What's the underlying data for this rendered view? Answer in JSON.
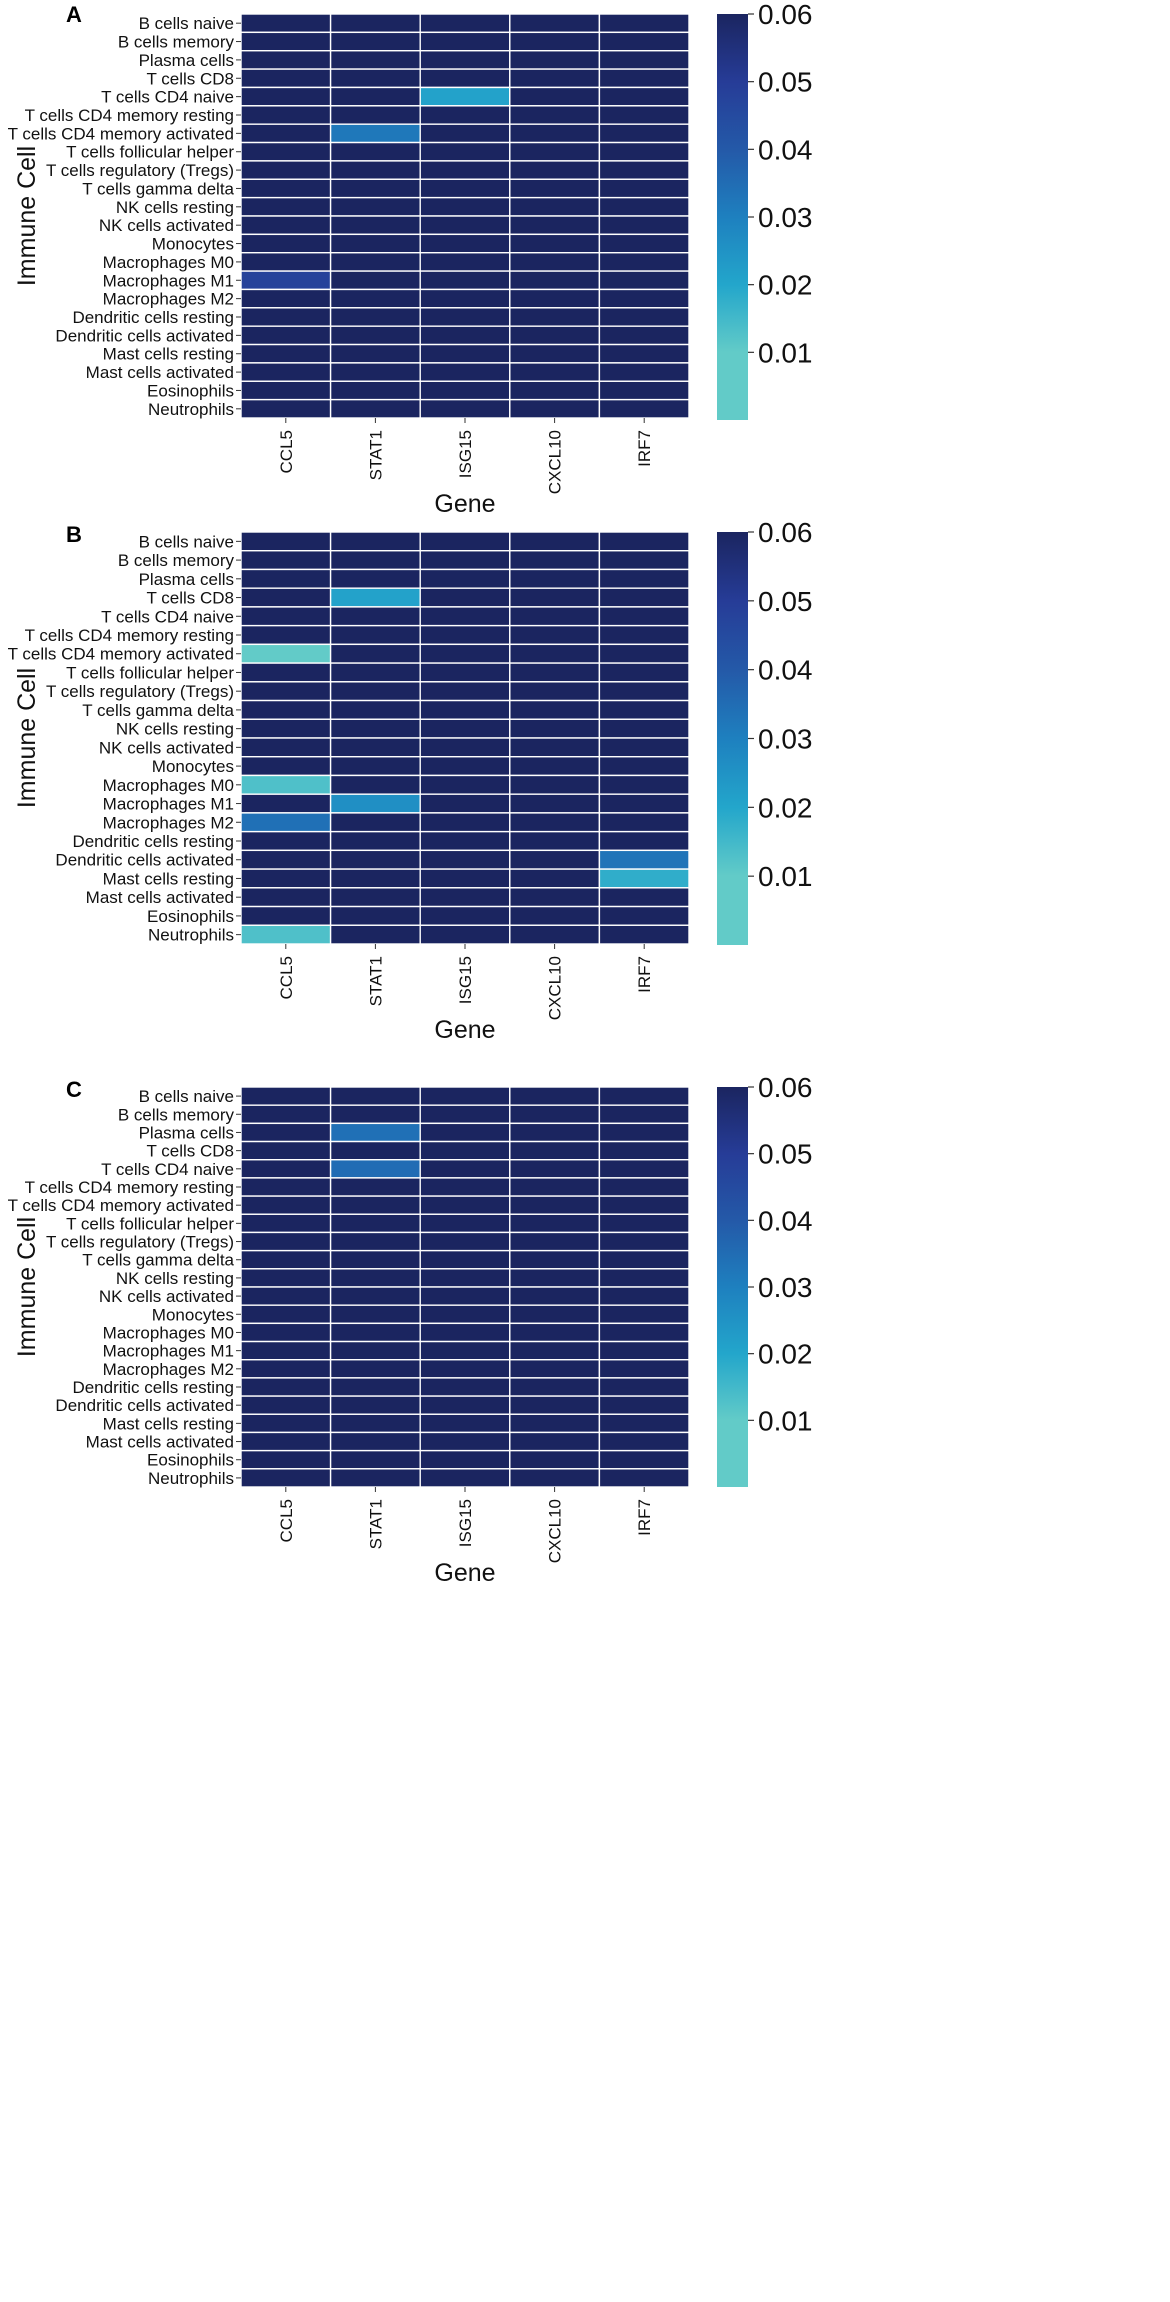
{
  "chart_data": [
    {
      "type": "heatmap",
      "panel_label": "A",
      "xlabel": "Gene",
      "ylabel": "Immune Cell",
      "columns": [
        "CCL5",
        "STAT1",
        "ISG15",
        "CXCL10",
        "IRF7"
      ],
      "rows": [
        "B cells naive",
        "B cells memory",
        "Plasma cells",
        "T cells CD8",
        "T cells CD4 naive",
        "T cells CD4 memory resting",
        "T cells CD4 memory activated",
        "T cells follicular helper",
        "T cells regulatory (Tregs)",
        "T cells gamma delta",
        "NK cells resting",
        "NK cells activated",
        "Monocytes",
        "Macrophages M0",
        "Macrophages M1",
        "Macrophages M2",
        "Dendritic cells resting",
        "Dendritic cells activated",
        "Mast cells resting",
        "Mast cells activated",
        "Eosinophils",
        "Neutrophils"
      ],
      "values": [
        [
          0.06,
          0.06,
          0.06,
          0.06,
          0.06
        ],
        [
          0.06,
          0.06,
          0.06,
          0.06,
          0.06
        ],
        [
          0.06,
          0.06,
          0.06,
          0.06,
          0.06
        ],
        [
          0.06,
          0.06,
          0.06,
          0.06,
          0.06
        ],
        [
          0.06,
          0.06,
          0.021,
          0.06,
          0.06
        ],
        [
          0.06,
          0.06,
          0.06,
          0.06,
          0.06
        ],
        [
          0.06,
          0.032,
          0.06,
          0.06,
          0.06
        ],
        [
          0.06,
          0.06,
          0.06,
          0.06,
          0.06
        ],
        [
          0.06,
          0.06,
          0.06,
          0.06,
          0.06
        ],
        [
          0.06,
          0.06,
          0.06,
          0.06,
          0.06
        ],
        [
          0.06,
          0.06,
          0.06,
          0.06,
          0.06
        ],
        [
          0.06,
          0.06,
          0.06,
          0.06,
          0.06
        ],
        [
          0.06,
          0.06,
          0.06,
          0.06,
          0.06
        ],
        [
          0.06,
          0.06,
          0.06,
          0.06,
          0.06
        ],
        [
          0.048,
          0.06,
          0.06,
          0.06,
          0.06
        ],
        [
          0.06,
          0.06,
          0.06,
          0.06,
          0.06
        ],
        [
          0.06,
          0.06,
          0.06,
          0.06,
          0.06
        ],
        [
          0.06,
          0.06,
          0.06,
          0.06,
          0.06
        ],
        [
          0.06,
          0.06,
          0.06,
          0.06,
          0.06
        ],
        [
          0.06,
          0.06,
          0.06,
          0.06,
          0.06
        ],
        [
          0.06,
          0.06,
          0.06,
          0.06,
          0.06
        ],
        [
          0.06,
          0.06,
          0.06,
          0.06,
          0.06
        ]
      ],
      "color_range": [
        0,
        0.06
      ],
      "colorbar_ticks": [
        "0.01",
        "0.02",
        "0.03",
        "0.04",
        "0.05",
        "0.06"
      ],
      "colormap": "YlGnBu",
      "grid": true
    },
    {
      "type": "heatmap",
      "panel_label": "B",
      "xlabel": "Gene",
      "ylabel": "Immune Cell",
      "columns": [
        "CCL5",
        "STAT1",
        "ISG15",
        "CXCL10",
        "IRF7"
      ],
      "rows": [
        "B cells naive",
        "B cells memory",
        "Plasma cells",
        "T cells CD8",
        "T cells CD4 naive",
        "T cells CD4 memory resting",
        "T cells CD4 memory activated",
        "T cells follicular helper",
        "T cells regulatory (Tregs)",
        "T cells gamma delta",
        "NK cells resting",
        "NK cells activated",
        "Monocytes",
        "Macrophages M0",
        "Macrophages M1",
        "Macrophages M2",
        "Dendritic cells resting",
        "Dendritic cells activated",
        "Mast cells resting",
        "Mast cells activated",
        "Eosinophils",
        "Neutrophils"
      ],
      "values": [
        [
          0.06,
          0.06,
          0.06,
          0.06,
          0.06
        ],
        [
          0.06,
          0.06,
          0.06,
          0.06,
          0.06
        ],
        [
          0.06,
          0.06,
          0.06,
          0.06,
          0.06
        ],
        [
          0.06,
          0.021,
          0.06,
          0.06,
          0.06
        ],
        [
          0.06,
          0.06,
          0.06,
          0.06,
          0.06
        ],
        [
          0.06,
          0.06,
          0.06,
          0.06,
          0.06
        ],
        [
          0.006,
          0.06,
          0.06,
          0.06,
          0.06
        ],
        [
          0.06,
          0.06,
          0.06,
          0.06,
          0.06
        ],
        [
          0.06,
          0.06,
          0.06,
          0.06,
          0.06
        ],
        [
          0.06,
          0.06,
          0.06,
          0.06,
          0.06
        ],
        [
          0.06,
          0.06,
          0.06,
          0.06,
          0.06
        ],
        [
          0.06,
          0.06,
          0.06,
          0.06,
          0.06
        ],
        [
          0.06,
          0.06,
          0.06,
          0.06,
          0.06
        ],
        [
          0.013,
          0.06,
          0.06,
          0.06,
          0.06
        ],
        [
          0.06,
          0.026,
          0.06,
          0.06,
          0.06
        ],
        [
          0.034,
          0.06,
          0.06,
          0.06,
          0.06
        ],
        [
          0.06,
          0.06,
          0.06,
          0.06,
          0.06
        ],
        [
          0.06,
          0.06,
          0.06,
          0.06,
          0.033
        ],
        [
          0.06,
          0.06,
          0.06,
          0.06,
          0.018
        ],
        [
          0.06,
          0.06,
          0.06,
          0.06,
          0.06
        ],
        [
          0.06,
          0.06,
          0.06,
          0.06,
          0.06
        ],
        [
          0.013,
          0.06,
          0.06,
          0.06,
          0.06
        ]
      ],
      "color_range": [
        0,
        0.06
      ],
      "colorbar_ticks": [
        "0.01",
        "0.02",
        "0.03",
        "0.04",
        "0.05",
        "0.06"
      ],
      "colormap": "YlGnBu",
      "grid": true
    },
    {
      "type": "heatmap",
      "panel_label": "C",
      "xlabel": "Gene",
      "ylabel": "Immune Cell",
      "columns": [
        "CCL5",
        "STAT1",
        "ISG15",
        "CXCL10",
        "IRF7"
      ],
      "rows": [
        "B cells naive",
        "B cells memory",
        "Plasma cells",
        "T cells CD8",
        "T cells CD4 naive",
        "T cells CD4 memory resting",
        "T cells CD4 memory activated",
        "T cells follicular helper",
        "T cells regulatory (Tregs)",
        "T cells gamma delta",
        "NK cells resting",
        "NK cells activated",
        "Monocytes",
        "Macrophages M0",
        "Macrophages M1",
        "Macrophages M2",
        "Dendritic cells resting",
        "Dendritic cells activated",
        "Mast cells resting",
        "Mast cells activated",
        "Eosinophils",
        "Neutrophils"
      ],
      "values": [
        [
          0.06,
          0.06,
          0.06,
          0.06,
          0.06
        ],
        [
          0.06,
          0.06,
          0.06,
          0.06,
          0.06
        ],
        [
          0.06,
          0.034,
          0.06,
          0.06,
          0.06
        ],
        [
          0.06,
          0.06,
          0.06,
          0.06,
          0.06
        ],
        [
          0.06,
          0.035,
          0.06,
          0.06,
          0.06
        ],
        [
          0.06,
          0.06,
          0.06,
          0.06,
          0.06
        ],
        [
          0.06,
          0.06,
          0.06,
          0.06,
          0.06
        ],
        [
          0.06,
          0.06,
          0.06,
          0.06,
          0.06
        ],
        [
          0.06,
          0.06,
          0.06,
          0.06,
          0.06
        ],
        [
          0.06,
          0.06,
          0.06,
          0.06,
          0.06
        ],
        [
          0.06,
          0.06,
          0.06,
          0.06,
          0.06
        ],
        [
          0.06,
          0.06,
          0.06,
          0.06,
          0.06
        ],
        [
          0.06,
          0.06,
          0.06,
          0.06,
          0.06
        ],
        [
          0.06,
          0.06,
          0.06,
          0.06,
          0.06
        ],
        [
          0.06,
          0.06,
          0.06,
          0.06,
          0.06
        ],
        [
          0.06,
          0.06,
          0.06,
          0.06,
          0.06
        ],
        [
          0.06,
          0.06,
          0.06,
          0.06,
          0.06
        ],
        [
          0.06,
          0.06,
          0.06,
          0.06,
          0.06
        ],
        [
          0.06,
          0.06,
          0.06,
          0.06,
          0.06
        ],
        [
          0.06,
          0.06,
          0.06,
          0.06,
          0.06
        ],
        [
          0.06,
          0.06,
          0.06,
          0.06,
          0.06
        ],
        [
          0.06,
          0.06,
          0.06,
          0.06,
          0.06
        ]
      ],
      "color_range": [
        0,
        0.06
      ],
      "colorbar_ticks": [
        "0.01",
        "0.02",
        "0.03",
        "0.04",
        "0.05",
        "0.06"
      ],
      "colormap": "YlGnBu",
      "grid": true
    }
  ]
}
